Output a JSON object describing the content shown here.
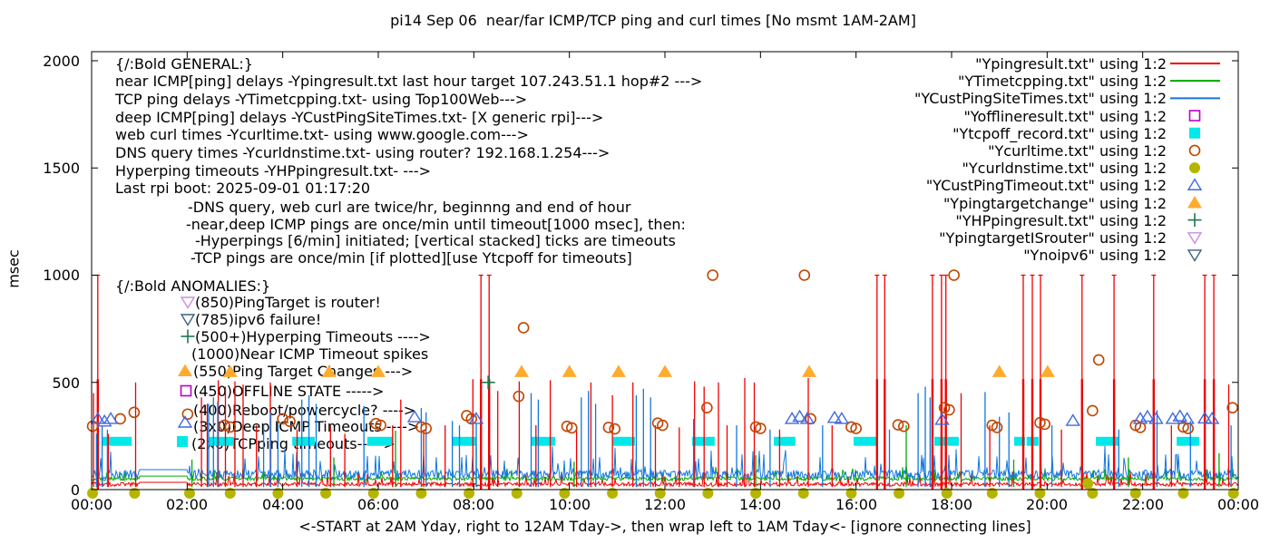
{
  "page": {
    "title": "pi14 Sep 06  near/far ICMP/TCP ping and curl times [No msmt 1AM-2AM]"
  },
  "axes": {
    "ylabel": "msec",
    "xlabel": "<-START at 2AM Yday, right to 12AM Tday->, then wrap left to 1AM Tday<- [ignore connecting lines]",
    "y_ticks": [
      "0",
      "500",
      "1000",
      "1500",
      "2000"
    ],
    "x_ticks": [
      "00:00",
      "02:00",
      "04:00",
      "06:00",
      "08:00",
      "10:00",
      "12:00",
      "14:00",
      "16:00",
      "18:00",
      "20:00",
      "22:00",
      "00:00"
    ]
  },
  "general": {
    "title": "{/:Bold GENERAL:}",
    "lines": [
      "near ICMP[ping] delays -Ypingresult.txt last hour target 107.243.51.1 hop#2 --->",
      "TCP ping delays -YTimetcpping.txt- using Top100Web--->",
      "deep ICMP[ping] delays -YCustPingSiteTimes.txt- [X generic rpi]--->",
      "web curl times -Ycurltime.txt- using www.google.com--->",
      "DNS query times -Ycurldnstime.txt- using router? 192.168.1.254--->",
      "Hyperping timeouts -YHPpingresult.txt- --->",
      "Last rpi boot: 2025-09-01 01:17:20"
    ],
    "notes": [
      "-DNS query, web curl are twice/hr, beginnng and end of hour",
      "-near,deep ICMP pings are once/min until timeout[1000 msec], then:",
      "-Hyperpings [6/min] initiated; [vertical stacked] ticks are timeouts",
      "-TCP pings are once/min [if plotted][use Ytcpoff for timeouts]"
    ]
  },
  "anomalies": {
    "title": "{/:Bold ANOMALIES:}",
    "items": [
      {
        "text": "(850)PingTarget is router!",
        "marker": "triangle-down-open",
        "color": "#c98fe0"
      },
      {
        "text": "(785)ipv6 failure!",
        "marker": "triangle-down-open",
        "color": "#3a627f"
      },
      {
        "text": "(500+)Hyperping Timeouts ---->",
        "marker": "plus",
        "color": "#1a7a50"
      },
      {
        "text": "(1000)Near ICMP Timeout spikes",
        "marker": "",
        "color": ""
      },
      {
        "text": "(550)Ping Target Changes --->",
        "marker": "triangle-fill",
        "color": "#ffab2e"
      },
      {
        "text": "(450)OFFLINE STATE ----->",
        "marker": "square-open",
        "color": "#bb00cc"
      },
      {
        "text": "(400)Reboot/powercycle? ---->",
        "marker": "",
        "color": ""
      },
      {
        "text": "(3x0)Deep ICMP Timeouts ---->",
        "marker": "triangle-open",
        "color": "#4169e1"
      },
      {
        "text": "(2x0)TCPping timeouts----->",
        "marker": "square-fill",
        "color": "#00e8e8"
      }
    ]
  },
  "chart_data": {
    "type": "line",
    "title": "pi14 Sep 06  near/far ICMP/TCP ping and curl times [No msmt 1AM-2AM]",
    "xlabel": "<-START at 2AM Yday, right to 12AM Tday->, then wrap left to 1AM Tday<- [ignore connecting lines]",
    "ylabel": "msec",
    "ylim": [
      0,
      2000
    ],
    "xlim_hours": [
      0,
      24
    ],
    "y_tick_values": [
      0,
      500,
      1000,
      1500,
      2000
    ],
    "x_tick_hours": [
      0,
      2,
      4,
      6,
      8,
      10,
      12,
      14,
      16,
      18,
      20,
      22,
      24
    ],
    "no_msmt_gap_hours": [
      1,
      2
    ],
    "series": [
      {
        "name": "Ypingresult.txt",
        "legend_label": "\"Ypingresult.txt\" using 1:2",
        "style": "line",
        "color": "#ee0000",
        "noise": {
          "base": 16,
          "amp": 18,
          "burst_p": 0.06,
          "burst_amp": 60,
          "flat": 34,
          "seed": 101
        },
        "spikes": [
          [
            0.04,
            450
          ],
          [
            0.13,
            1000
          ],
          [
            0.35,
            260
          ],
          [
            0.92,
            500
          ],
          [
            2.3,
            430
          ],
          [
            2.42,
            400
          ],
          [
            2.65,
            510
          ],
          [
            2.8,
            480
          ],
          [
            3.0,
            505
          ],
          [
            3.17,
            490
          ],
          [
            3.45,
            300
          ],
          [
            3.74,
            500
          ],
          [
            4.3,
            280
          ],
          [
            5.0,
            300
          ],
          [
            5.3,
            260
          ],
          [
            6.3,
            300
          ],
          [
            6.47,
            420
          ],
          [
            6.95,
            280
          ],
          [
            7.4,
            300
          ],
          [
            7.98,
            515
          ],
          [
            8.15,
            1000
          ],
          [
            8.32,
            1000
          ],
          [
            8.5,
            460
          ],
          [
            8.95,
            505
          ],
          [
            9.3,
            300
          ],
          [
            9.6,
            510
          ],
          [
            10.15,
            280
          ],
          [
            10.45,
            500
          ],
          [
            10.9,
            440
          ],
          [
            11.33,
            500
          ],
          [
            11.8,
            300
          ],
          [
            12.3,
            290
          ],
          [
            12.62,
            505
          ],
          [
            12.82,
            480
          ],
          [
            13.12,
            500
          ],
          [
            13.3,
            300
          ],
          [
            13.67,
            520
          ],
          [
            13.87,
            500
          ],
          [
            14.4,
            280
          ],
          [
            15.0,
            520
          ],
          [
            15.5,
            300
          ],
          [
            16.44,
            1000
          ],
          [
            16.6,
            1000
          ],
          [
            17.6,
            1000
          ],
          [
            17.79,
            1000
          ],
          [
            17.88,
            1000
          ],
          [
            18.2,
            450
          ],
          [
            18.8,
            300
          ],
          [
            19.5,
            1000
          ],
          [
            19.69,
            1000
          ],
          [
            19.86,
            1000
          ],
          [
            20.3,
            280
          ],
          [
            20.73,
            1000
          ],
          [
            21.4,
            1000
          ],
          [
            22.23,
            1000
          ],
          [
            22.6,
            300
          ],
          [
            23.3,
            1000
          ],
          [
            23.49,
            1000
          ],
          [
            23.8,
            490
          ]
        ]
      },
      {
        "name": "YTimetcpping.txt",
        "legend_label": "\"YTimetcpping.txt\" using 1:2",
        "style": "line",
        "color": "#00a800",
        "noise": {
          "base": 42,
          "amp": 18,
          "burst_p": 0.05,
          "burst_amp": 55,
          "flat": 63,
          "seed": 202
        },
        "spikes": [
          [
            2.1,
            140
          ],
          [
            5.07,
            150
          ],
          [
            6.36,
            275
          ],
          [
            8.05,
            200
          ],
          [
            10.1,
            130
          ],
          [
            13.9,
            160
          ],
          [
            17.05,
            300
          ],
          [
            19.3,
            140
          ],
          [
            21.7,
            150
          ],
          [
            23.6,
            170
          ]
        ]
      },
      {
        "name": "YCustPingSiteTimes.txt",
        "legend_label": "\"YCustPingSiteTimes.txt\" using 1:2",
        "style": "line",
        "color": "#1177dd",
        "noise": {
          "base": 50,
          "amp": 42,
          "burst_p": 0.1,
          "burst_amp": 120,
          "flat": 93,
          "seed": 303
        },
        "spikes": [
          [
            0.1,
            260
          ],
          [
            0.22,
            300
          ],
          [
            0.33,
            280
          ],
          [
            2.45,
            400
          ],
          [
            2.55,
            430
          ],
          [
            2.64,
            410
          ],
          [
            3.6,
            300
          ],
          [
            3.75,
            360
          ],
          [
            3.9,
            340
          ],
          [
            4.4,
            420
          ],
          [
            4.55,
            440
          ],
          [
            4.7,
            400
          ],
          [
            5.7,
            390
          ],
          [
            6.9,
            380
          ],
          [
            7.0,
            360
          ],
          [
            7.55,
            320
          ],
          [
            7.7,
            300
          ],
          [
            8.05,
            310
          ],
          [
            9.2,
            450
          ],
          [
            9.35,
            420
          ],
          [
            10.25,
            430
          ],
          [
            10.4,
            460
          ],
          [
            10.55,
            400
          ],
          [
            11.4,
            440
          ],
          [
            11.55,
            470
          ],
          [
            11.7,
            430
          ],
          [
            12.6,
            330
          ],
          [
            13.5,
            300
          ],
          [
            14.2,
            280
          ],
          [
            15.3,
            300
          ],
          [
            16.7,
            280
          ],
          [
            17.3,
            450
          ],
          [
            17.45,
            480
          ],
          [
            17.55,
            430
          ],
          [
            18.7,
            455
          ],
          [
            19.0,
            340
          ],
          [
            19.2,
            360
          ],
          [
            20.1,
            300
          ],
          [
            21.5,
            280
          ],
          [
            22.3,
            370
          ],
          [
            23.0,
            320
          ],
          [
            23.85,
            300
          ]
        ]
      },
      {
        "name": "Yofflineresult.txt",
        "legend_label": "\"Yofflineresult.txt\" using 1:2",
        "style": "square-open",
        "color": "#bb00cc",
        "points": []
      },
      {
        "name": "Ytcpoff_record.txt",
        "legend_label": "\"Ytcpoff_record.txt\" using 1:2",
        "style": "square-fill",
        "color": "#00e8e8",
        "value": 225,
        "bars": [
          [
            0.23,
            0.84
          ],
          [
            2.45,
            2.98
          ],
          [
            4.2,
            4.67
          ],
          [
            5.77,
            6.3
          ],
          [
            7.54,
            8.05
          ],
          [
            9.19,
            9.7
          ],
          [
            10.9,
            11.37
          ],
          [
            12.57,
            13.04
          ],
          [
            14.28,
            14.73
          ],
          [
            15.95,
            16.44
          ],
          [
            17.64,
            18.15
          ],
          [
            19.31,
            19.54
          ],
          [
            19.57,
            19.82
          ],
          [
            21.02,
            21.49
          ],
          [
            22.71,
            23.18
          ]
        ]
      },
      {
        "name": "Ycurltime.txt",
        "legend_label": "\"Ycurltime.txt\" using 1:2",
        "style": "circle-open",
        "color": "#c04500",
        "points": [
          [
            0.02,
            296
          ],
          [
            0.6,
            330
          ],
          [
            0.89,
            360
          ],
          [
            2.01,
            352
          ],
          [
            2.78,
            300
          ],
          [
            2.9,
            292
          ],
          [
            4.0,
            330
          ],
          [
            4.15,
            318
          ],
          [
            5.95,
            308
          ],
          [
            6.05,
            300
          ],
          [
            6.9,
            292
          ],
          [
            7.0,
            285
          ],
          [
            7.85,
            345
          ],
          [
            7.95,
            330
          ],
          [
            8.94,
            435
          ],
          [
            9.04,
            755
          ],
          [
            9.95,
            295
          ],
          [
            10.05,
            288
          ],
          [
            10.82,
            290
          ],
          [
            10.95,
            283
          ],
          [
            11.85,
            310
          ],
          [
            11.95,
            300
          ],
          [
            12.88,
            382
          ],
          [
            13.0,
            1000
          ],
          [
            13.9,
            292
          ],
          [
            14.0,
            285
          ],
          [
            14.92,
            1000
          ],
          [
            15.05,
            330
          ],
          [
            15.9,
            292
          ],
          [
            16.0,
            285
          ],
          [
            16.88,
            302
          ],
          [
            17.0,
            295
          ],
          [
            17.85,
            382
          ],
          [
            17.95,
            372
          ],
          [
            18.05,
            1000
          ],
          [
            18.85,
            300
          ],
          [
            18.95,
            290
          ],
          [
            19.85,
            312
          ],
          [
            19.95,
            305
          ],
          [
            20.95,
            368
          ],
          [
            21.08,
            605
          ],
          [
            21.85,
            300
          ],
          [
            21.95,
            290
          ],
          [
            22.85,
            292
          ],
          [
            22.95,
            285
          ],
          [
            23.88,
            382
          ]
        ]
      },
      {
        "name": "Ycurldnstime.txt",
        "legend_label": "\"Ycurldnstime.txt\" using 1:2",
        "style": "circle-fill",
        "color": "#b5b500",
        "points": [
          [
            0.02,
            0
          ],
          [
            0.9,
            0
          ],
          [
            2.05,
            0
          ],
          [
            2.9,
            0
          ],
          [
            3.9,
            0
          ],
          [
            4.9,
            0
          ],
          [
            5.9,
            0
          ],
          [
            6.9,
            0
          ],
          [
            7.9,
            0
          ],
          [
            8.9,
            0
          ],
          [
            9.9,
            0
          ],
          [
            10.9,
            0
          ],
          [
            11.9,
            0
          ],
          [
            12.9,
            0
          ],
          [
            13.9,
            0
          ],
          [
            14.9,
            0
          ],
          [
            15.9,
            0
          ],
          [
            16.9,
            0
          ],
          [
            17.9,
            0
          ],
          [
            18.85,
            0
          ],
          [
            19.85,
            0
          ],
          [
            20.85,
            45
          ],
          [
            20.95,
            0
          ],
          [
            21.85,
            0
          ],
          [
            22.85,
            0
          ],
          [
            23.9,
            0
          ]
        ]
      },
      {
        "name": "YCustPingTimeout.txt",
        "legend_label": "\"YCustPingTimeout.txt\" using 1:2",
        "style": "triangle-open",
        "color": "#4169e1",
        "points": [
          [
            0.13,
            330
          ],
          [
            0.27,
            318
          ],
          [
            0.4,
            330
          ],
          [
            6.76,
            338
          ],
          [
            8.05,
            330
          ],
          [
            14.66,
            330
          ],
          [
            14.82,
            340
          ],
          [
            14.98,
            330
          ],
          [
            15.55,
            335
          ],
          [
            15.7,
            330
          ],
          [
            17.8,
            326
          ],
          [
            20.54,
            321
          ],
          [
            21.95,
            330
          ],
          [
            22.1,
            340
          ],
          [
            22.28,
            330
          ],
          [
            22.63,
            330
          ],
          [
            22.78,
            342
          ],
          [
            22.93,
            330
          ],
          [
            23.3,
            332
          ],
          [
            23.45,
            330
          ]
        ]
      },
      {
        "name": "Ypingtargetchange",
        "legend_label": "\"Ypingtargetchange\" using 1:2",
        "style": "triangle-fill",
        "color": "#ffab2e",
        "points": [
          [
            2.9,
            550
          ],
          [
            4.97,
            550
          ],
          [
            6.0,
            550
          ],
          [
            9.0,
            550
          ],
          [
            10.0,
            550
          ],
          [
            11.03,
            550
          ],
          [
            12.0,
            550
          ],
          [
            15.02,
            550
          ],
          [
            19.0,
            550
          ],
          [
            20.01,
            550
          ]
        ]
      },
      {
        "name": "YHPpingresult.txt",
        "legend_label": "\"YHPpingresult.txt\" using 1:2",
        "style": "plus",
        "color": "#1a7a50",
        "points": [
          [
            8.3,
            500
          ]
        ]
      },
      {
        "name": "YpingtargetISrouter",
        "legend_label": "\"YpingtargetISrouter\" using 1:2",
        "style": "triangle-down-open",
        "color": "#c98fe0",
        "points": []
      },
      {
        "name": "Ynoipv6",
        "legend_label": "\"Ynoipv6\" using 1:2",
        "style": "triangle-down-open",
        "color": "#3a627f",
        "points": []
      }
    ]
  }
}
